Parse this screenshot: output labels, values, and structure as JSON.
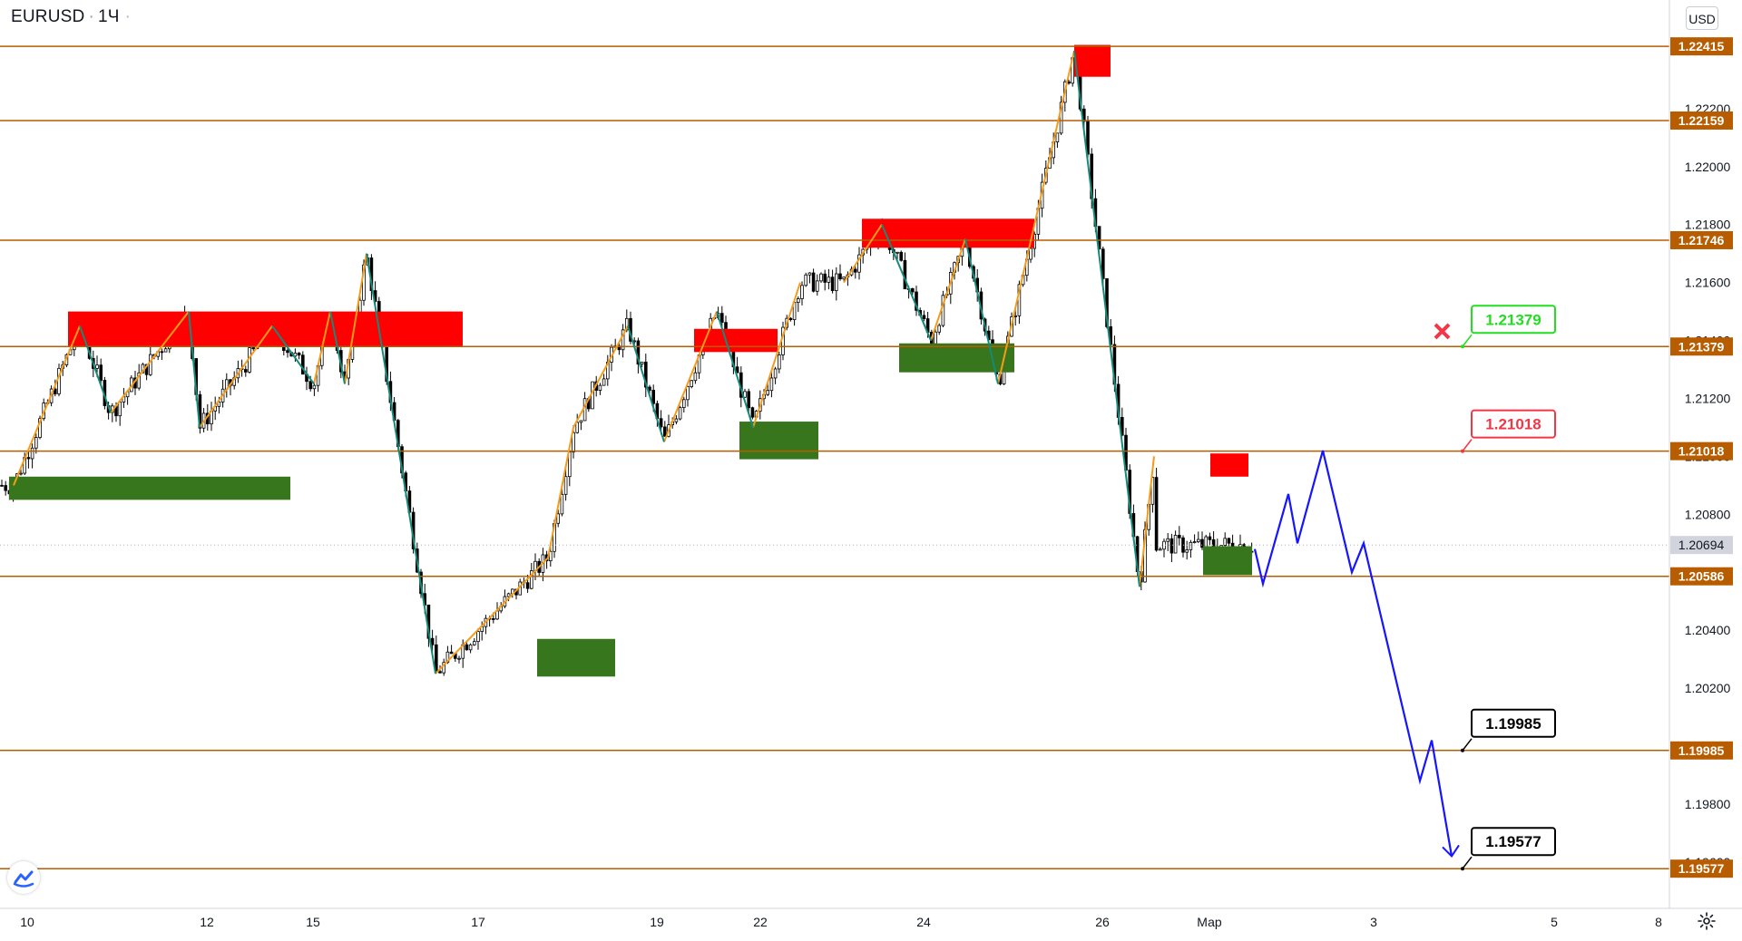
{
  "symbol": "EURUSD",
  "interval": "1Ч",
  "currency_button": "USD",
  "chart_data": {
    "type": "candlestick",
    "title": "EURUSD · 1Ч",
    "ylim": [
      1.1944,
      1.22575
    ],
    "y_ticks": [
      1.222,
      1.22,
      1.218,
      1.216,
      1.214,
      1.212,
      1.21,
      1.208,
      1.206,
      1.204,
      1.202,
      1.2,
      1.198,
      1.196
    ],
    "x_ticks": [
      "10",
      "12",
      "15",
      "17",
      "19",
      "22",
      "24",
      "26",
      "Мар",
      "3",
      "5",
      "8"
    ],
    "current_price": 1.20694,
    "horizontal_levels": [
      1.22415,
      1.22159,
      1.21746,
      1.21379,
      1.21018,
      1.20586,
      1.19985,
      1.19577
    ],
    "zigzag_up_legs": [
      [
        [
          0,
          1.209
        ],
        [
          2,
          1.2145
        ]
      ],
      [
        [
          3,
          1.2115
        ],
        [
          4,
          1.215
        ]
      ],
      [
        [
          5,
          1.211
        ],
        [
          7,
          1.2145
        ]
      ],
      [
        [
          8,
          1.2125
        ],
        [
          9,
          1.215
        ]
      ],
      [
        [
          10,
          1.2125
        ],
        [
          11,
          1.217
        ]
      ],
      [
        [
          12,
          1.2025
        ],
        [
          15,
          1.2065
        ]
      ],
      [
        [
          15,
          1.2065
        ],
        [
          16,
          1.211
        ]
      ],
      [
        [
          16,
          1.211
        ],
        [
          17,
          1.2145
        ]
      ],
      [
        [
          18,
          1.2105
        ],
        [
          19,
          1.215
        ]
      ],
      [
        [
          20,
          1.211
        ],
        [
          21,
          1.216
        ]
      ],
      [
        [
          22,
          1.216
        ],
        [
          23,
          1.218
        ]
      ],
      [
        [
          24,
          1.214
        ],
        [
          25,
          1.2175
        ]
      ],
      [
        [
          26,
          1.2125
        ],
        [
          27,
          1.224
        ]
      ],
      [
        [
          28,
          1.2055
        ],
        [
          29,
          1.21
        ]
      ]
    ],
    "zigzag_down_legs": [
      [
        [
          2,
          1.2145
        ],
        [
          3,
          1.2115
        ]
      ],
      [
        [
          4,
          1.215
        ],
        [
          5,
          1.211
        ]
      ],
      [
        [
          7,
          1.2145
        ],
        [
          8,
          1.2125
        ]
      ],
      [
        [
          9,
          1.215
        ],
        [
          10,
          1.2125
        ]
      ],
      [
        [
          11,
          1.217
        ],
        [
          12,
          1.2025
        ]
      ],
      [
        [
          17,
          1.2145
        ],
        [
          18,
          1.2105
        ]
      ],
      [
        [
          19,
          1.215
        ],
        [
          20,
          1.211
        ]
      ],
      [
        [
          23,
          1.218
        ],
        [
          24,
          1.214
        ]
      ],
      [
        [
          25,
          1.2175
        ],
        [
          26,
          1.2125
        ]
      ],
      [
        [
          27,
          1.224
        ],
        [
          28,
          1.2055
        ]
      ]
    ],
    "projection_path": [
      1.2068,
      1.2056,
      1.2087,
      1.207,
      1.2102,
      1.206,
      1.207,
      1.1988,
      1.2002,
      1.1962
    ],
    "supply_zones": [
      [
        1.215,
        1.2138
      ],
      [
        1.2144,
        1.2136
      ],
      [
        1.2182,
        1.2172
      ],
      [
        1.2242,
        1.2231
      ],
      [
        1.2101,
        1.2093
      ]
    ],
    "demand_zones": [
      [
        1.2093,
        1.2085
      ],
      [
        1.2112,
        1.2099
      ],
      [
        1.2139,
        1.2129
      ],
      [
        1.2037,
        1.2024
      ],
      [
        1.2069,
        1.2059
      ]
    ],
    "target_labels": [
      {
        "price": 1.21379,
        "text": "1.21379",
        "color": "#22dd22"
      },
      {
        "price": 1.21018,
        "text": "1.21018",
        "color": "#f23645"
      },
      {
        "price": 1.19985,
        "text": "1.19985",
        "color": "#000000"
      },
      {
        "price": 1.19577,
        "text": "1.19577",
        "color": "#000000"
      }
    ],
    "cross_marker_price": 1.2143
  }
}
